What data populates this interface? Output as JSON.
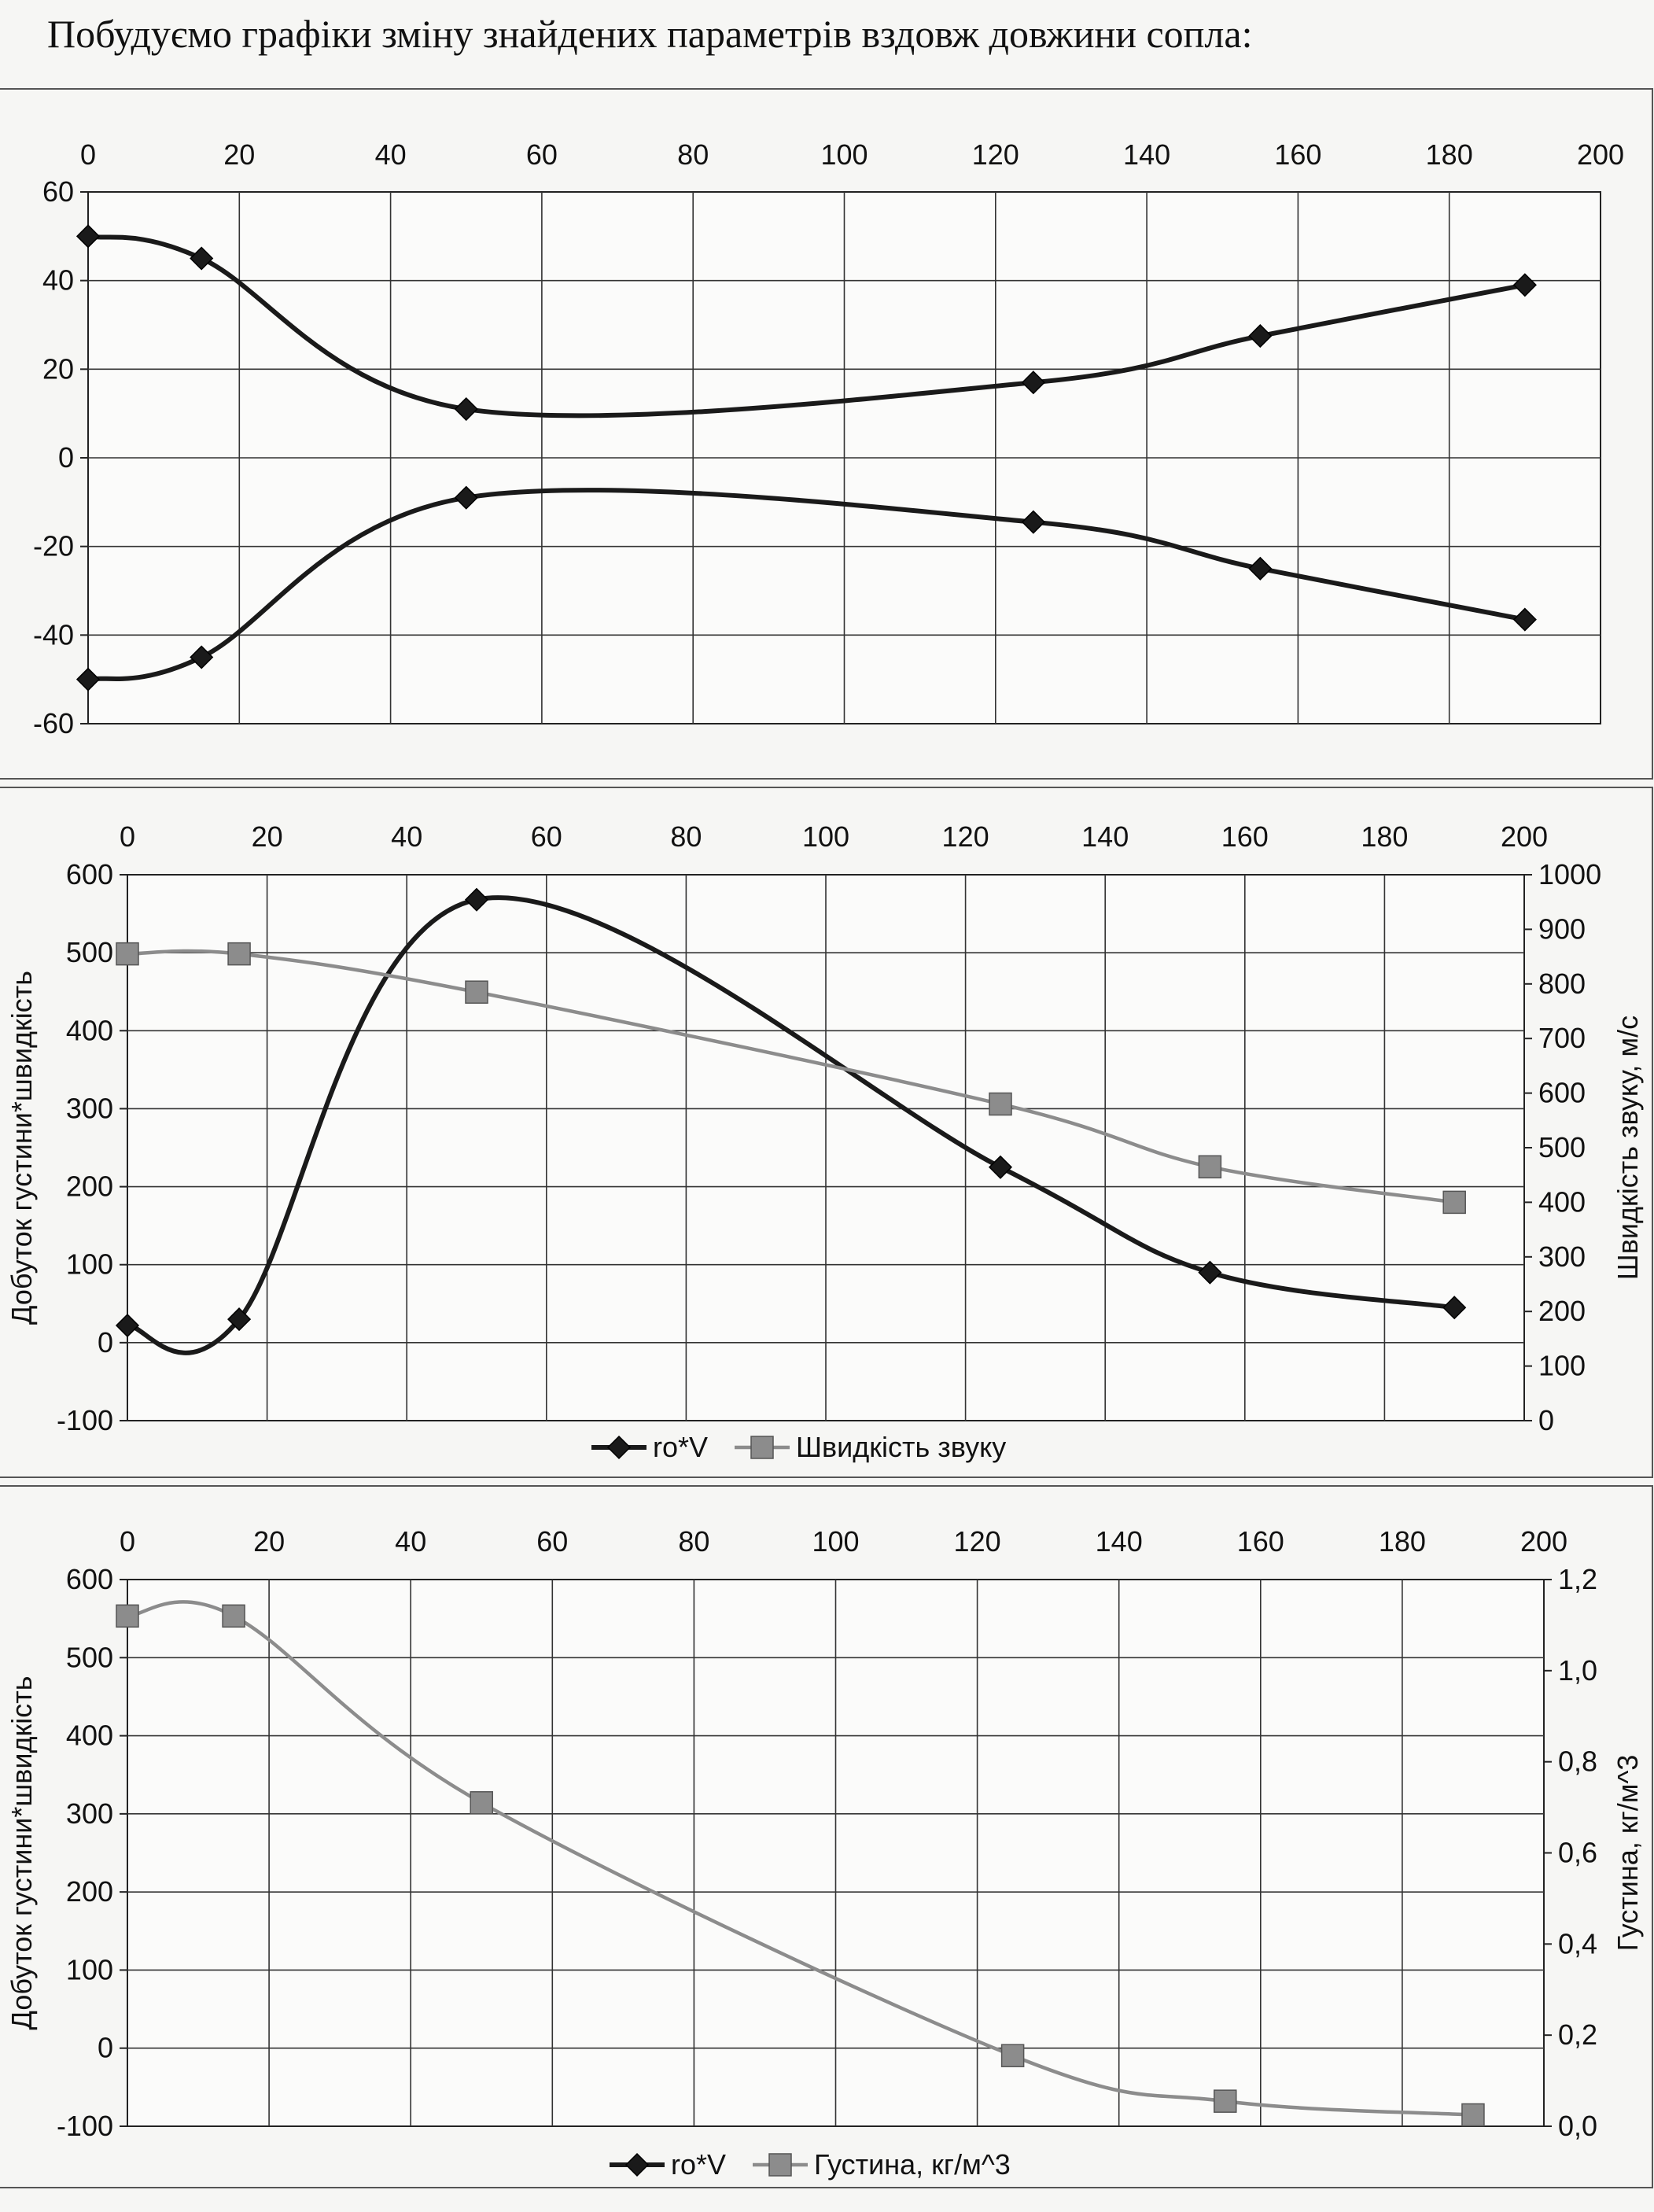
{
  "heading": "Побудуємо графіки зміну знайдених параметрів вздовж довжини сопла:",
  "chart_data": [
    {
      "type": "line",
      "xlim": [
        0,
        200
      ],
      "ylim": [
        -60,
        60
      ],
      "xticks": [
        "0",
        "20",
        "40",
        "60",
        "80",
        "100",
        "120",
        "140",
        "160",
        "180",
        "200"
      ],
      "yticks": [
        "60",
        "40",
        "20",
        "0",
        "-20",
        "-40",
        "-60"
      ],
      "x_axis_position": "top",
      "grid": true,
      "series": [
        {
          "color": "#1a1a1a",
          "marker": "diamond",
          "x": [
            0,
            15,
            50,
            125,
            155,
            190
          ],
          "values": [
            50,
            45,
            11,
            17,
            27.5,
            39
          ]
        },
        {
          "color": "#1a1a1a",
          "marker": "diamond",
          "x": [
            0,
            15,
            50,
            125,
            155,
            190
          ],
          "values": [
            -50,
            -45,
            -9,
            -14.5,
            -25,
            -36.5
          ]
        }
      ]
    },
    {
      "type": "line",
      "xlim": [
        0,
        200
      ],
      "ylim": [
        -100,
        600
      ],
      "y2lim": [
        0,
        1000
      ],
      "xticks": [
        "0",
        "20",
        "40",
        "60",
        "80",
        "100",
        "120",
        "140",
        "160",
        "180",
        "200"
      ],
      "yticks": [
        "600",
        "500",
        "400",
        "300",
        "200",
        "100",
        "0",
        "-100"
      ],
      "y2ticks": [
        "1000",
        "900",
        "800",
        "700",
        "600",
        "500",
        "400",
        "300",
        "200",
        "100",
        "0"
      ],
      "x_axis_position": "top",
      "ylabel": "Добуток густини*швидкість",
      "y2label": "Швидкість звуку, м/с",
      "legend_position": "bottom",
      "grid": true,
      "series": [
        {
          "name": "ro*V",
          "color": "#1a1a1a",
          "marker": "diamond",
          "axis": "left",
          "x": [
            0,
            16,
            50,
            125,
            155,
            190
          ],
          "values": [
            22,
            30,
            568,
            225,
            90,
            45
          ]
        },
        {
          "name": "Швидкість звуку",
          "color": "#8c8c8c",
          "marker": "square",
          "axis": "right",
          "x": [
            0,
            16,
            50,
            125,
            155,
            190
          ],
          "values": [
            855,
            855,
            785,
            580,
            465,
            400
          ]
        }
      ]
    },
    {
      "type": "line",
      "xlim": [
        0,
        200
      ],
      "ylim": [
        -100,
        600
      ],
      "y2lim": [
        0,
        1.2
      ],
      "xticks": [
        "0",
        "20",
        "40",
        "60",
        "80",
        "100",
        "120",
        "140",
        "160",
        "180",
        "200"
      ],
      "yticks": [
        "600",
        "500",
        "400",
        "300",
        "200",
        "100",
        "0",
        "-100"
      ],
      "y2ticks": [
        "1,2",
        "1,0",
        "0,8",
        "0,6",
        "0,4",
        "0,2",
        "0,0"
      ],
      "x_axis_position": "top",
      "ylabel": "Добуток густини*швидкість",
      "y2label": "Густина, кг/м^3",
      "legend_position": "bottom",
      "grid": true,
      "series": [
        {
          "name": "ro*V",
          "color": "#1a1a1a",
          "marker": "diamond",
          "axis": "left",
          "x": [],
          "values": []
        },
        {
          "name": "Густина, кг/м^3",
          "color": "#8c8c8c",
          "marker": "square",
          "axis": "right",
          "x": [
            0,
            15,
            50,
            125,
            155,
            190
          ],
          "values": [
            1.12,
            1.12,
            0.71,
            0.155,
            0.055,
            0.025
          ]
        }
      ]
    }
  ]
}
